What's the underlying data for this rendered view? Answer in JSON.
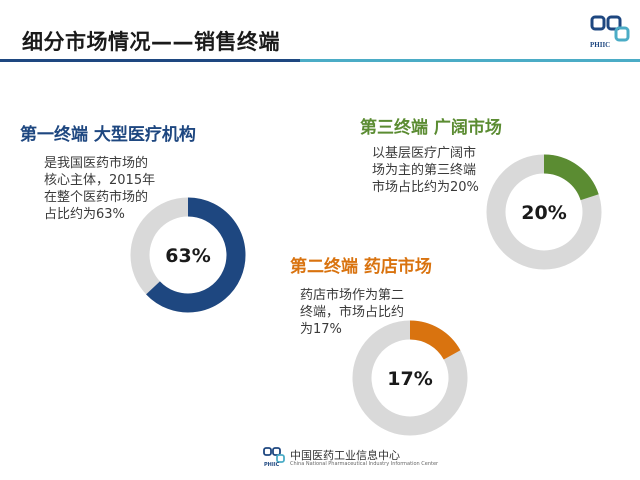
{
  "header": {
    "title": "细分市场情况——销售终端",
    "logo_text": "PHIIC",
    "rule_color_dark": "#1e4780",
    "rule_color_light": "#4bacc6"
  },
  "colors": {
    "terminal1": "#1e4780",
    "terminal2": "#d9730f",
    "terminal3": "#5b8c32",
    "track": "#d9d9d9",
    "heading1": "#1e4780",
    "heading2": "#d9730f",
    "heading3": "#5b8c32"
  },
  "terminals": [
    {
      "heading": "第一终端 大型医疗机构",
      "desc": [
        "是我国医药市场的",
        "核心主体，2015年",
        "在整个医药市场的",
        "占比约为63%"
      ]
    },
    {
      "heading": "第三终端 广阔市场",
      "desc": [
        "以基层医疗广阔市",
        "场为主的第三终端",
        "市场占比约为20%"
      ]
    },
    {
      "heading": "第二终端 药店市场",
      "desc": [
        "药店市场作为第二",
        "终端，市场占比约",
        "为17%"
      ]
    }
  ],
  "chart_data": [
    {
      "type": "pie",
      "title": "第一终端 大型医疗机构",
      "values": [
        63,
        37
      ],
      "label": "63%"
    },
    {
      "type": "pie",
      "title": "第三终端 广阔市场",
      "values": [
        20,
        80
      ],
      "label": "20%"
    },
    {
      "type": "pie",
      "title": "第二终端 药店市场",
      "values": [
        17,
        83
      ],
      "label": "17%"
    }
  ],
  "footer": {
    "org_cn": "中国医药工业信息中心",
    "org_en": "China National Pharmaceutical Industry Information Center",
    "logo_text": "PHIIC"
  }
}
